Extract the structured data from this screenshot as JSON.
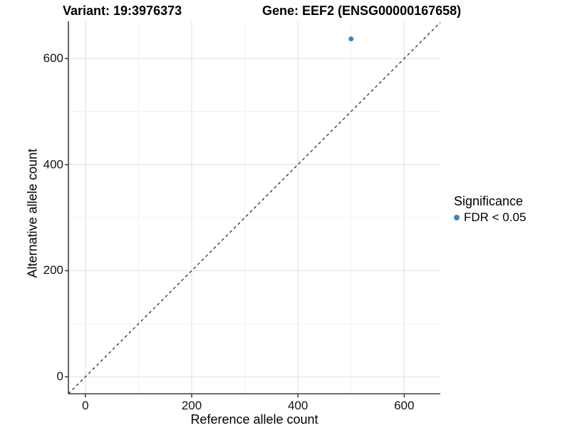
{
  "titles": {
    "variant": "Variant: 19:3976373",
    "gene": "Gene: EEF2 (ENSG00000167658)"
  },
  "chart_data": {
    "type": "scatter",
    "xlabel": "Reference allele count",
    "ylabel": "Alternative allele count",
    "xlim": [
      -32,
      668
    ],
    "ylim": [
      -32,
      670
    ],
    "x_ticks": [
      0,
      200,
      400,
      600
    ],
    "y_ticks": [
      0,
      200,
      400,
      600
    ],
    "x_minor_breaks": [
      100,
      300,
      500
    ],
    "y_minor_breaks": [
      100,
      300,
      500
    ],
    "grid": true,
    "points": [
      {
        "x": 500,
        "y": 637,
        "series": "FDR < 0.05"
      }
    ],
    "point_radius": 3.5,
    "identity_line": {
      "equation": "y = x",
      "style": "dashed"
    },
    "legend": {
      "position": "right",
      "title": "Significance",
      "entries": [
        {
          "label": "FDR < 0.05",
          "color": "#4682B4"
        }
      ]
    }
  },
  "colors": {
    "point": "#4682B4",
    "grid_major": "#e3e3e3",
    "grid_minor": "#f0f0f0",
    "axis_line": "#3f3f3f",
    "dashed_line": "#1a1a1a",
    "text": "#000000"
  }
}
